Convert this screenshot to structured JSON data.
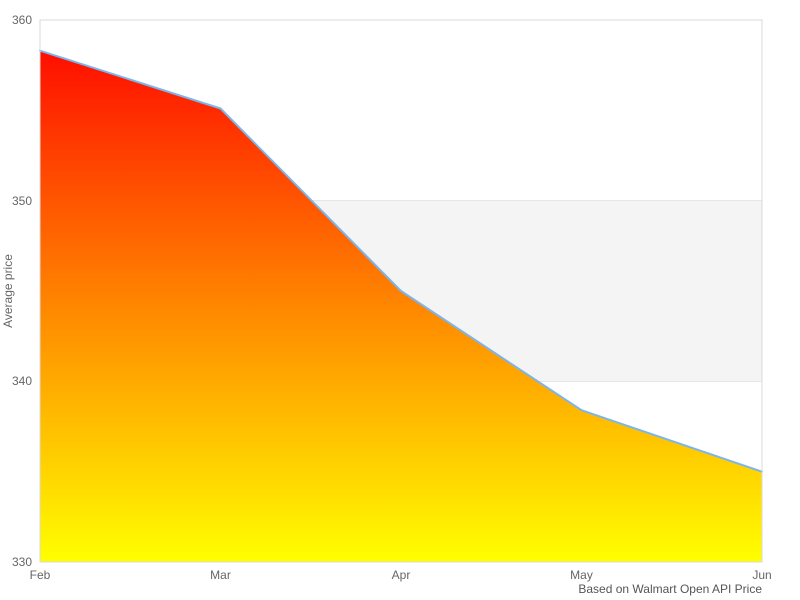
{
  "chart_data": {
    "type": "area",
    "categories": [
      "Feb",
      "Mar",
      "Apr",
      "May",
      "Jun"
    ],
    "series": [
      {
        "name": "Average price",
        "values": [
          358.3,
          355.1,
          345.0,
          338.4,
          335.0
        ]
      }
    ],
    "title": "",
    "xlabel": "",
    "ylabel": "Average price",
    "ylim": [
      330,
      360
    ],
    "yticks": [
      330,
      340,
      350,
      360
    ],
    "grid": true,
    "legend_position": "none",
    "plot_band": {
      "from": 340,
      "to": 350,
      "color": "#f4f4f4"
    },
    "credits": "Based on Walmart Open API Price",
    "colors": {
      "line": "#7cb5ec",
      "area_gradient_top": "#ff0000",
      "area_gradient_bottom": "#ffff00",
      "gridline": "#e6e6e6",
      "plot_border": "#d8d8d8",
      "label_text": "#666666",
      "credits_text": "#555555"
    }
  }
}
